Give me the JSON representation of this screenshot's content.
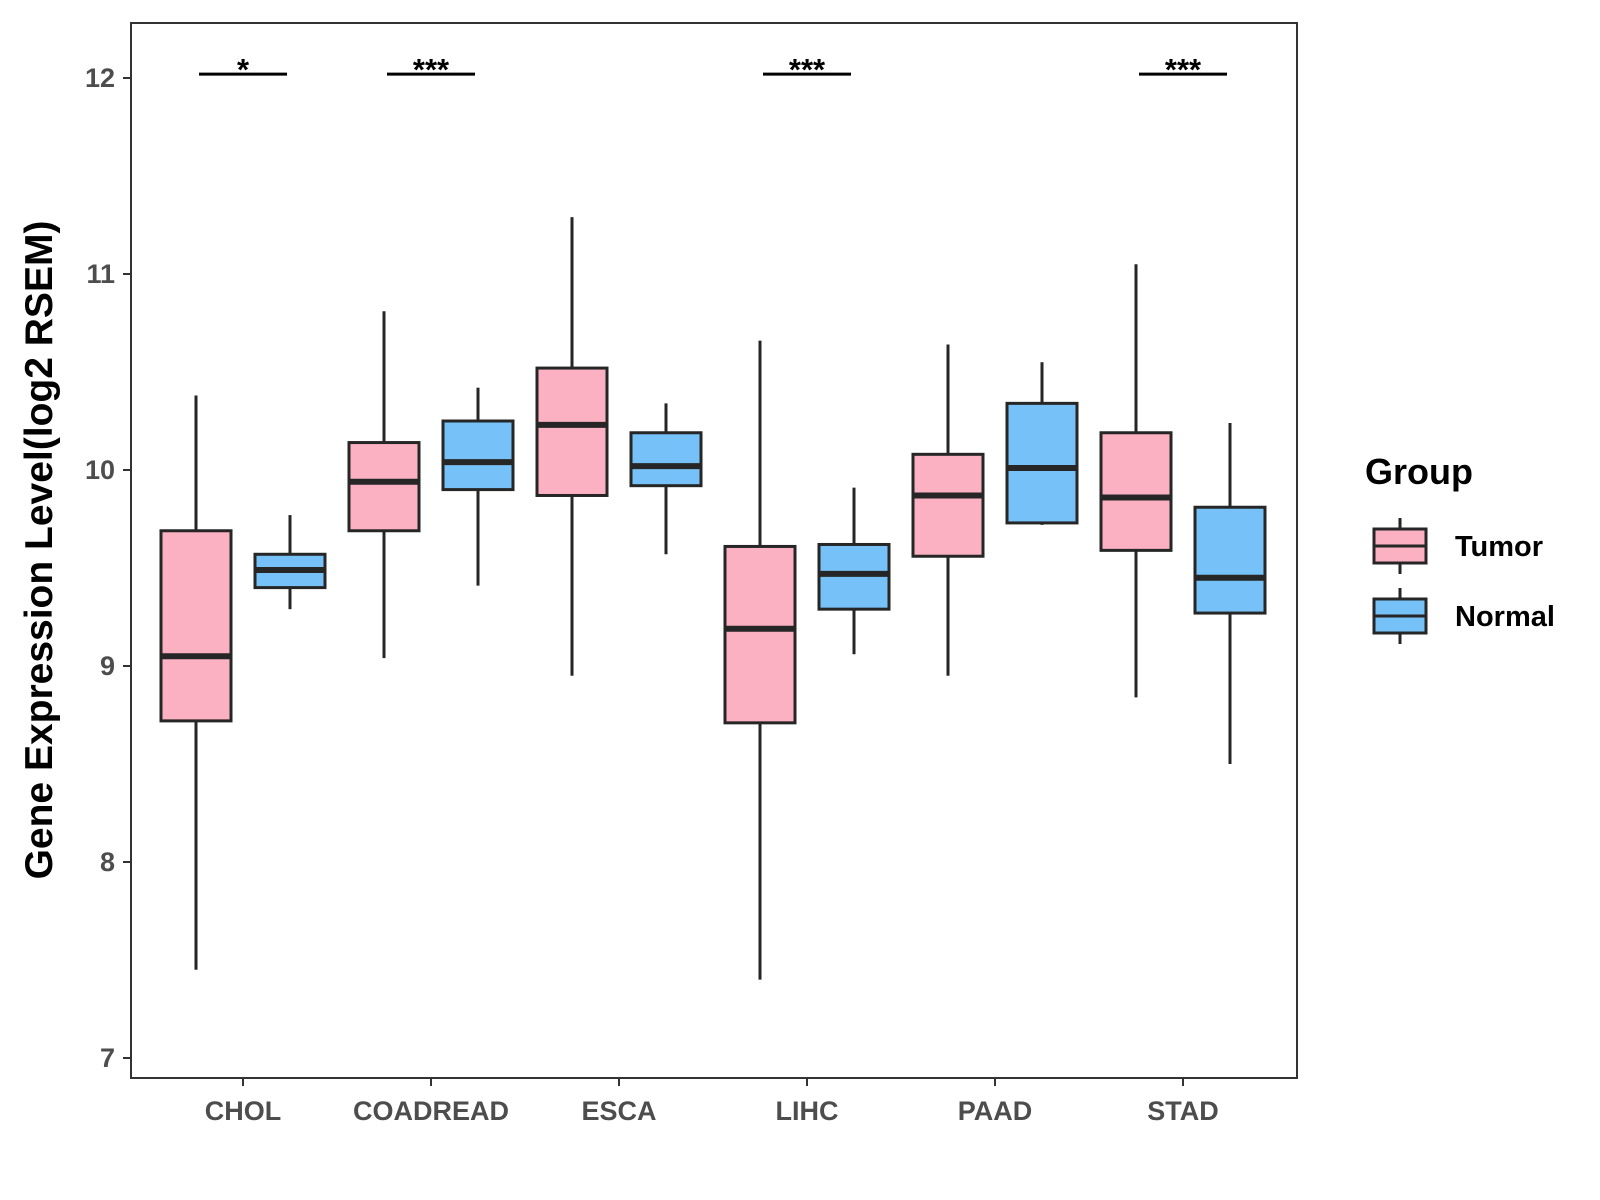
{
  "chart_data": {
    "type": "boxplot",
    "title": "",
    "xlabel": "",
    "ylabel": "Gene Expression Level(log2 RSEM)",
    "ylim": [
      6.9,
      12.3
    ],
    "yticks": [
      7,
      8,
      9,
      10,
      11,
      12
    ],
    "categories": [
      "CHOL",
      "COADREAD",
      "ESCA",
      "LIHC",
      "PAAD",
      "STAD"
    ],
    "legend": {
      "title": "Group",
      "position": "right",
      "entries": [
        "Tumor",
        "Normal"
      ]
    },
    "series": [
      {
        "name": "Tumor",
        "color": "#fbb1c2",
        "boxes": [
          {
            "min": 7.45,
            "q1": 8.72,
            "median": 9.05,
            "q3": 9.69,
            "max": 10.38
          },
          {
            "min": 9.04,
            "q1": 9.69,
            "median": 9.94,
            "q3": 10.14,
            "max": 10.81
          },
          {
            "min": 8.95,
            "q1": 9.87,
            "median": 10.23,
            "q3": 10.52,
            "max": 11.29
          },
          {
            "min": 7.4,
            "q1": 8.71,
            "median": 9.19,
            "q3": 9.61,
            "max": 10.66
          },
          {
            "min": 8.95,
            "q1": 9.56,
            "median": 9.87,
            "q3": 10.08,
            "max": 10.64
          },
          {
            "min": 8.84,
            "q1": 9.59,
            "median": 9.86,
            "q3": 10.19,
            "max": 11.05
          }
        ]
      },
      {
        "name": "Normal",
        "color": "#76c1f7",
        "boxes": [
          {
            "min": 9.29,
            "q1": 9.4,
            "median": 9.49,
            "q3": 9.57,
            "max": 9.77
          },
          {
            "min": 9.41,
            "q1": 9.9,
            "median": 10.04,
            "q3": 10.25,
            "max": 10.42
          },
          {
            "min": 9.57,
            "q1": 9.92,
            "median": 10.02,
            "q3": 10.19,
            "max": 10.34
          },
          {
            "min": 9.06,
            "q1": 9.29,
            "median": 9.47,
            "q3": 9.62,
            "max": 9.91
          },
          {
            "min": 9.72,
            "q1": 9.73,
            "median": 10.01,
            "q3": 10.34,
            "max": 10.55
          },
          {
            "min": 8.5,
            "q1": 9.27,
            "median": 9.45,
            "q3": 9.81,
            "max": 10.24
          }
        ]
      }
    ],
    "significance": [
      {
        "category": "CHOL",
        "label": "*",
        "y": 12.02
      },
      {
        "category": "COADREAD",
        "label": "***",
        "y": 12.02
      },
      {
        "category": "LIHC",
        "label": "***",
        "y": 12.02
      },
      {
        "category": "STAD",
        "label": "***",
        "y": 12.02
      }
    ]
  }
}
